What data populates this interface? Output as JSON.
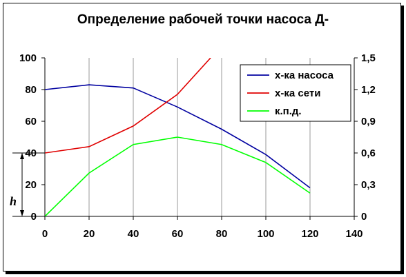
{
  "chart_data": {
    "type": "line",
    "title": "Определение рабочей точки насоса Д-",
    "xlabel": "",
    "ylabel": "",
    "xlim": [
      0,
      140
    ],
    "ylim": [
      0,
      100
    ],
    "y2lim": [
      0,
      1.5
    ],
    "x_ticks": [
      "0",
      "20",
      "40",
      "60",
      "80",
      "100",
      "120",
      "140"
    ],
    "y_ticks": [
      "0",
      "20",
      "40",
      "60",
      "80",
      "100"
    ],
    "y2_ticks": [
      "0",
      "0,3",
      "0,6",
      "0,9",
      "1,2",
      "1,5"
    ],
    "grid": "vertical",
    "legend_position": "top-right",
    "series": [
      {
        "name": "х-ка насоса",
        "color": "#0000a0",
        "axis": "left",
        "x": [
          0,
          20,
          40,
          60,
          80,
          100,
          120
        ],
        "values": [
          80,
          83,
          81,
          69,
          55,
          39,
          18
        ]
      },
      {
        "name": "х-ка сети",
        "color": "#e00000",
        "axis": "left",
        "x": [
          0,
          20,
          40,
          60,
          75
        ],
        "values": [
          40,
          44,
          57,
          77,
          100
        ]
      },
      {
        "name": "к.п.д.",
        "color": "#00ff00",
        "axis": "right",
        "x": [
          0,
          20,
          40,
          60,
          80,
          100,
          120
        ],
        "values": [
          0,
          0.41,
          0.68,
          0.75,
          0.68,
          0.51,
          0.22
        ]
      }
    ],
    "annotations": [
      {
        "text": "h",
        "at_y": [
          0,
          40
        ]
      }
    ]
  }
}
